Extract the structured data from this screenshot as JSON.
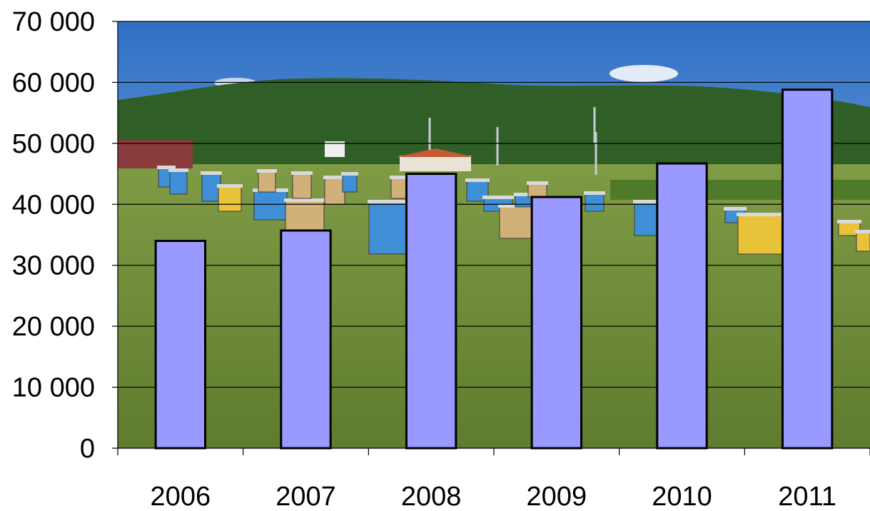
{
  "chart_data": {
    "type": "bar",
    "categories": [
      "2006",
      "2007",
      "2008",
      "2009",
      "2010",
      "2011"
    ],
    "values": [
      34000,
      35700,
      45000,
      41200,
      46700,
      58800
    ],
    "ylim": [
      0,
      70000
    ],
    "yticks": [
      0,
      10000,
      20000,
      30000,
      40000,
      50000,
      60000,
      70000
    ],
    "ytick_labels": [
      "0",
      "10 000",
      "20 000",
      "30 000",
      "40 000",
      "50 000",
      "60 000",
      "70 000"
    ],
    "grid": true,
    "legend": "none",
    "background": "photo of beehives in a grassy field with a forested hill",
    "colors": {
      "bar_fill": "#9999ff",
      "bar_stroke": "#000000",
      "grid": "#000000",
      "sky_top": "#2f6fc4",
      "sky_bottom": "#a9c9ee",
      "hill": "#2f5f27",
      "grass": "#6f8d3a",
      "hive_blue": "#3f8fd6",
      "hive_yellow": "#e8c33a",
      "hive_wood": "#d2b07a"
    }
  }
}
